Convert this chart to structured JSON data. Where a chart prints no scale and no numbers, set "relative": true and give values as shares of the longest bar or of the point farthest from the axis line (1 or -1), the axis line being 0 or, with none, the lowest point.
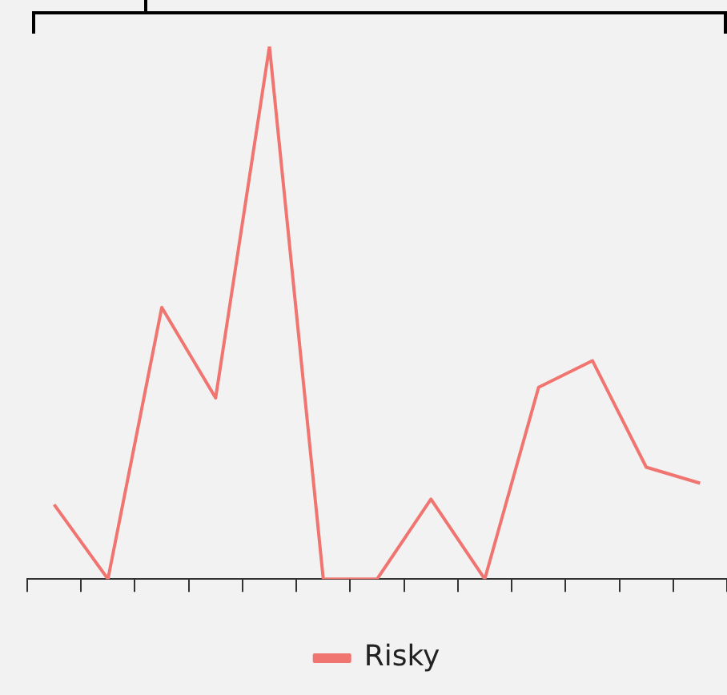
{
  "chart_data": {
    "type": "line",
    "relative": true,
    "categories": [
      null,
      null,
      null,
      null,
      null,
      null,
      null,
      null,
      null,
      null,
      null,
      null,
      null
    ],
    "series": [
      {
        "name": "Risky",
        "color": "#f07470",
        "values": [
          0.14,
          0,
          0.51,
          0.34,
          1,
          0,
          0,
          0.15,
          0,
          0.36,
          0.41,
          0.21,
          0.18
        ]
      }
    ],
    "legend": "bottom",
    "marker": "none",
    "line_style": "solid",
    "grid": false
  }
}
